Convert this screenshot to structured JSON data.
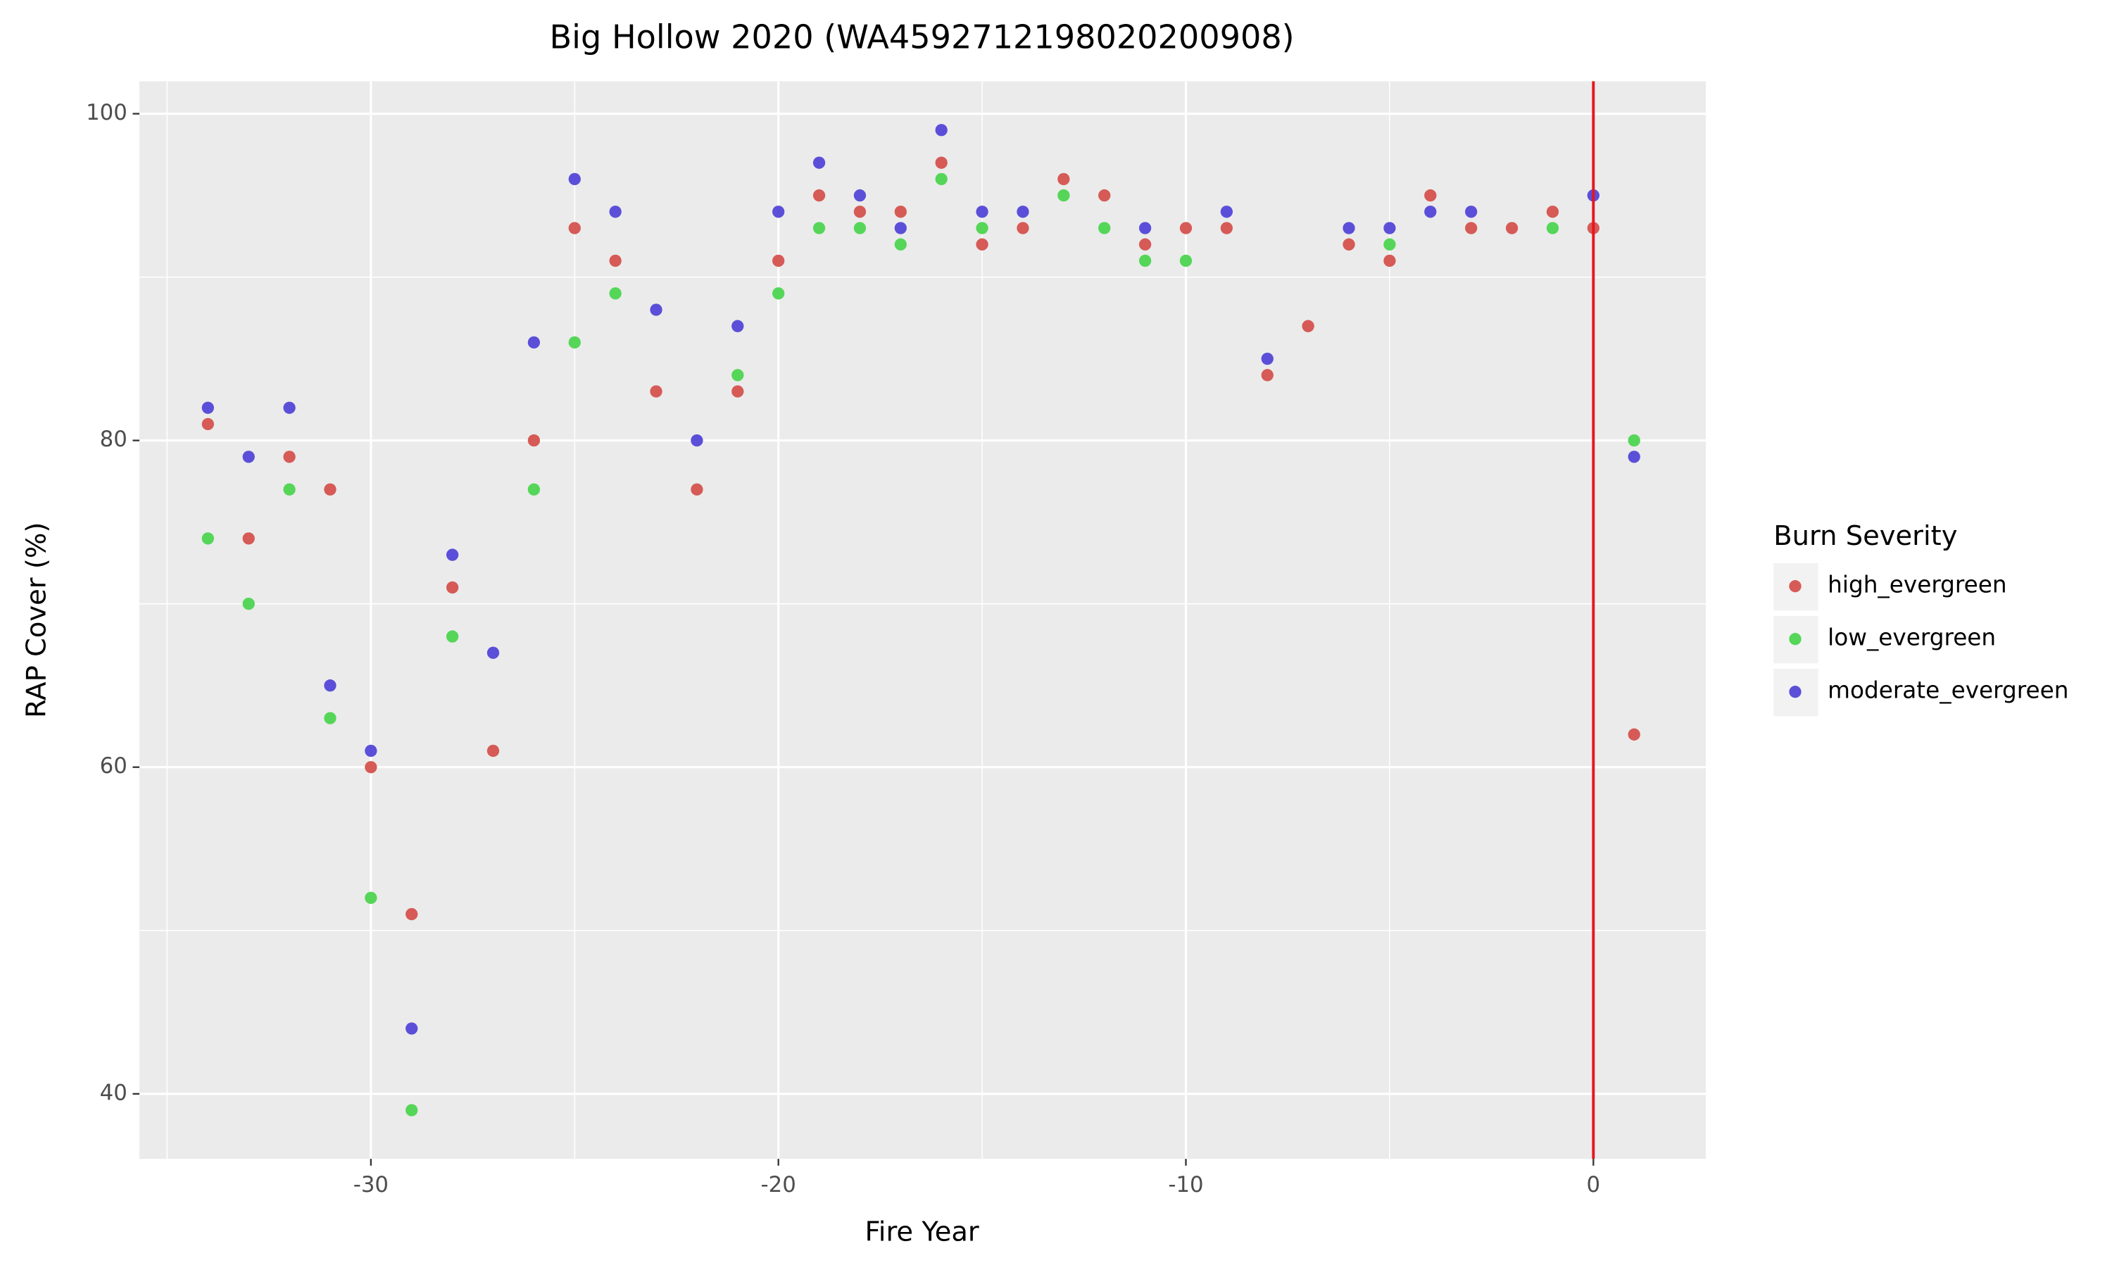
{
  "chart_data": {
    "type": "scatter",
    "title": "Big Hollow 2020 (WA4592712198020200908)",
    "x_label": "Fire Year",
    "y_label": "RAP Cover (%)",
    "legend_title": "Burn Severity",
    "legend": "right",
    "xlim": [
      -35.68,
      2.76
    ],
    "ylim": [
      36.02,
      101.99
    ],
    "xticks": [
      -30,
      -20,
      -10,
      0
    ],
    "yticks": [
      40,
      60,
      80,
      100
    ],
    "x_minor_grid": [
      -35,
      -25,
      -15,
      -5
    ],
    "y_minor_grid": [
      50,
      70,
      90
    ],
    "grid": true,
    "vline": 0,
    "vline_color": "#e8141c",
    "series": [
      {
        "name": "high_evergreen",
        "color": "#d65a56",
        "x": [
          -34,
          -33,
          -32,
          -31,
          -30,
          -29,
          -28,
          -27,
          -26,
          -25,
          -24,
          -23,
          -22,
          -21,
          -20,
          -19,
          -18,
          -17,
          -16,
          -15,
          -14,
          -13,
          -12,
          -11,
          -10,
          -9,
          -8,
          -7,
          -6,
          -5,
          -4,
          -3,
          -2,
          -1,
          0,
          1
        ],
        "values": [
          81,
          74,
          79,
          77,
          60,
          51,
          71,
          61,
          80,
          93,
          91,
          83,
          77,
          83,
          91,
          95,
          94,
          94,
          97,
          92,
          93,
          96,
          95,
          92,
          93,
          93,
          84,
          87,
          92,
          91,
          95,
          93,
          93,
          94,
          93,
          62
        ]
      },
      {
        "name": "low_evergreen",
        "color": "#55d658",
        "x": [
          -34,
          -33,
          -32,
          -31,
          -30,
          -29,
          -28,
          -26,
          -25,
          -24,
          -21,
          -20,
          -19,
          -18,
          -17,
          -16,
          -15,
          -13,
          -12,
          -11,
          -10,
          -5,
          -1,
          1
        ],
        "values": [
          74,
          70,
          77,
          63,
          52,
          39,
          68,
          77,
          86,
          89,
          84,
          89,
          93,
          93,
          92,
          96,
          93,
          95,
          93,
          91,
          91,
          92,
          93,
          80
        ]
      },
      {
        "name": "moderate_evergreen",
        "color": "#5b4fd9",
        "x": [
          -34,
          -33,
          -32,
          -31,
          -30,
          -29,
          -28,
          -27,
          -26,
          -25,
          -24,
          -23,
          -22,
          -21,
          -20,
          -19,
          -18,
          -17,
          -16,
          -15,
          -14,
          -11,
          -9,
          -8,
          -6,
          -5,
          -4,
          -3,
          0,
          1
        ],
        "values": [
          82,
          79,
          82,
          65,
          61,
          44,
          73,
          67,
          86,
          96,
          94,
          88,
          80,
          87,
          94,
          97,
          95,
          93,
          99,
          94,
          94,
          93,
          94,
          85,
          93,
          93,
          94,
          94,
          95,
          79
        ]
      }
    ]
  }
}
